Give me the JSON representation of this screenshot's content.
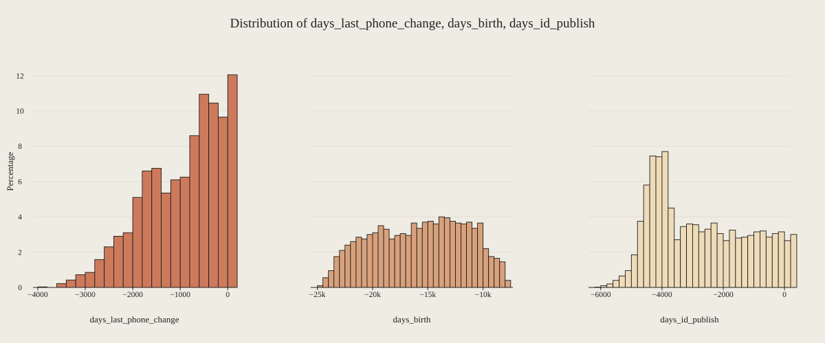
{
  "chart_data": {
    "type": "bar",
    "title": "Distribution of days_last_phone_change, days_birth, days_id_publish",
    "ylabel": "Percentage",
    "ylim": [
      0,
      12.4
    ],
    "yticks": [
      0,
      2,
      4,
      6,
      8,
      10,
      12
    ],
    "grid": true,
    "legend": "none",
    "panels": [
      {
        "xlabel": "days_last_phone_change",
        "color": "#cd7a5c",
        "xlim": [
          -4100,
          170
        ],
        "xticks": [
          {
            "value": -4000,
            "label": "−4000"
          },
          {
            "value": -3000,
            "label": "−3000"
          },
          {
            "value": -2000,
            "label": "−2000"
          },
          {
            "value": -1000,
            "label": "−1000"
          },
          {
            "value": 0,
            "label": "0"
          }
        ],
        "bin_start": -4000,
        "bin_width": 200,
        "values": [
          0.03,
          0.0,
          0.22,
          0.42,
          0.72,
          0.85,
          1.58,
          2.3,
          2.9,
          3.1,
          5.1,
          6.6,
          6.75,
          5.35,
          6.1,
          6.25,
          8.6,
          10.95,
          10.45,
          9.65,
          12.05
        ]
      },
      {
        "xlabel": "days_birth",
        "color": "#d8a17b",
        "xlim": [
          -25600,
          -7300
        ],
        "xticks": [
          {
            "value": -25000,
            "label": "−25k"
          },
          {
            "value": -20000,
            "label": "−20k"
          },
          {
            "value": -15000,
            "label": "−15k"
          },
          {
            "value": -10000,
            "label": "−10k"
          }
        ],
        "bin_start": -25000,
        "bin_width": 500,
        "values": [
          0.1,
          0.55,
          0.95,
          1.75,
          2.1,
          2.4,
          2.6,
          2.85,
          2.75,
          3.0,
          3.1,
          3.5,
          3.3,
          2.75,
          2.95,
          3.05,
          2.95,
          3.65,
          3.35,
          3.7,
          3.75,
          3.6,
          4.0,
          3.95,
          3.75,
          3.65,
          3.6,
          3.7,
          3.35,
          3.65,
          2.2,
          1.75,
          1.65,
          1.45,
          0.4
        ]
      },
      {
        "xlabel": "days_id_publish",
        "color": "#eedbb8",
        "xlim": [
          -6400,
          200
        ],
        "xticks": [
          {
            "value": -6000,
            "label": "−6000"
          },
          {
            "value": -4000,
            "label": "−4000"
          },
          {
            "value": -2000,
            "label": "−2000"
          },
          {
            "value": 0,
            "label": "0"
          }
        ],
        "bin_start": -6200,
        "bin_width": 200,
        "values": [
          0.02,
          0.1,
          0.2,
          0.4,
          0.65,
          0.95,
          1.85,
          3.75,
          5.8,
          7.45,
          7.4,
          7.7,
          4.5,
          2.7,
          3.45,
          3.6,
          3.55,
          3.15,
          3.3,
          3.65,
          3.05,
          2.65,
          3.25,
          2.8,
          2.85,
          2.95,
          3.15,
          3.2,
          2.85,
          3.05,
          3.15,
          2.65,
          3.0
        ]
      }
    ]
  }
}
